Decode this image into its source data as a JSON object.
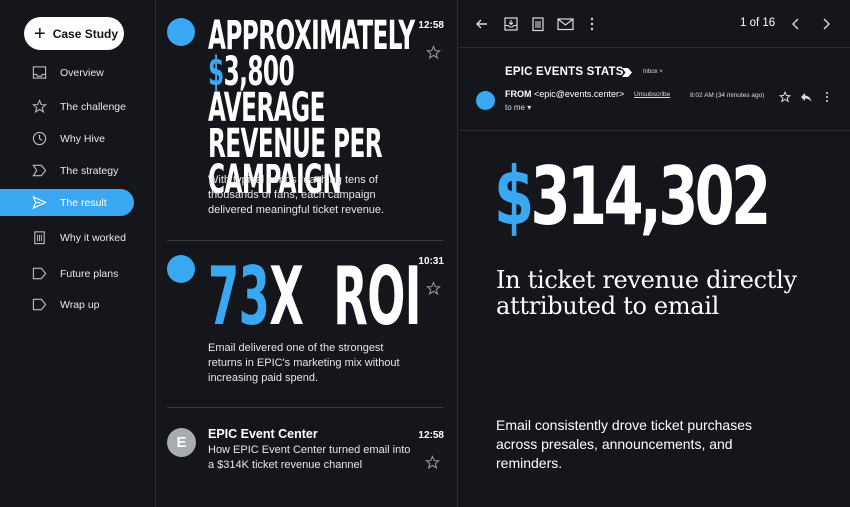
{
  "sidebar": {
    "compose_label": "Case Study",
    "items": [
      {
        "label": "Overview",
        "icon": "inbox-icon"
      },
      {
        "label": "The challenge",
        "icon": "star-icon"
      },
      {
        "label": "Why Hive",
        "icon": "clock-icon"
      },
      {
        "label": "The strategy",
        "icon": "label-icon"
      },
      {
        "label": "The result",
        "icon": "send-icon",
        "active": true
      },
      {
        "label": "Why it worked",
        "icon": "trash-icon"
      },
      {
        "label": "Future plans",
        "icon": "tag-icon"
      },
      {
        "label": "Wrap up",
        "icon": "tag-icon"
      }
    ]
  },
  "messages": [
    {
      "time": "12:58",
      "headline_line1": "APPROXIMATELY",
      "headline_dollar": "$",
      "headline_line2_rest": "3,800 AVERAGE",
      "headline_line3": "REVENUE PER",
      "headline_line4": "CAMPAIGN",
      "body": "With typical sends reaching tens of thousands of fans, each campaign delivered meaningful ticket revenue."
    },
    {
      "time": "10:31",
      "headline_accent": "73",
      "headline_rest": "X  ROI",
      "body": "Email delivered one of the strongest returns in EPIC's marketing mix without increasing paid spend."
    },
    {
      "time": "12:58",
      "avatar_letter": "E",
      "sender": "EPIC Event Center",
      "body": "How EPIC Event Center turned email into a $314K ticket revenue channel"
    }
  ],
  "pane": {
    "pager": "1 of 16",
    "subject": "EPIC EVENTS STATS",
    "inbox_tag": "Inbox ×",
    "from_label": "FROM",
    "from_email": "<epic@events.center>",
    "unsubscribe": "Unsubscribe",
    "sent_time": "8:02 AM (34 minutes ago)",
    "to_me": "to me ▾",
    "big_dollar": "$",
    "big_number": "314,302",
    "serif_text": "In ticket revenue directly attributed to email",
    "body_text": "Email consistently drove ticket purchases across presales, announcements, and reminders."
  },
  "colors": {
    "accent": "#3aa7f2",
    "background": "#15161b"
  }
}
